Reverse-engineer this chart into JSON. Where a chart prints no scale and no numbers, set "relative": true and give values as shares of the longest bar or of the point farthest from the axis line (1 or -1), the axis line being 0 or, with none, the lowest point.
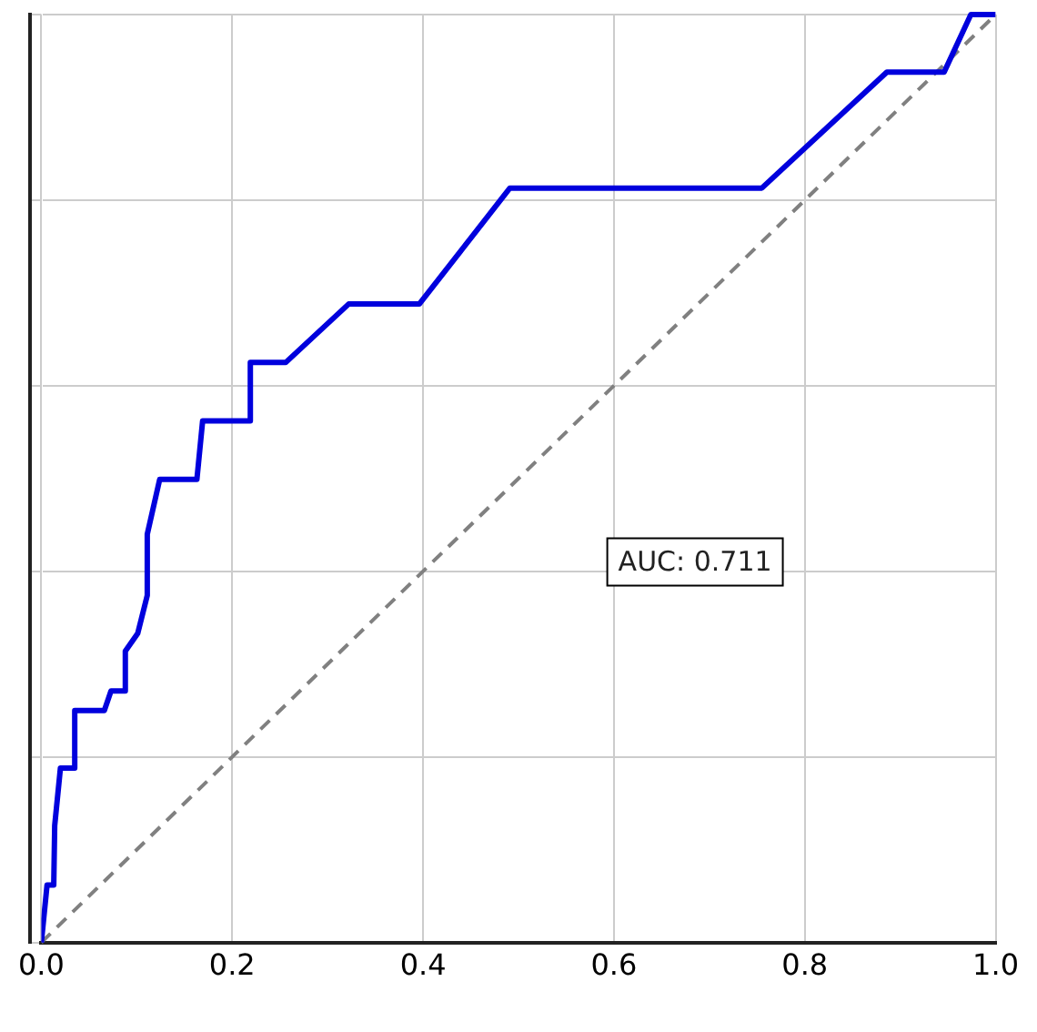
{
  "chart_data": {
    "type": "line",
    "relative": true,
    "xlim": [
      0,
      1
    ],
    "xticks": [
      {
        "value": 0,
        "label": "0.0"
      },
      {
        "value": 0.2,
        "label": "0.2"
      },
      {
        "value": 0.4,
        "label": "0.4"
      },
      {
        "value": 0.6,
        "label": "0.6"
      },
      {
        "value": 0.8,
        "label": "0.8"
      },
      {
        "value": 1,
        "label": "1.0"
      }
    ],
    "grid": true,
    "legend": false,
    "marker": "none",
    "annotations": [
      "AUC: 0.711"
    ],
    "series": [
      {
        "color": "#0000dd",
        "line_style": "solid",
        "x": [
          0,
          0.006,
          0.013,
          0.014,
          0.02,
          0.035,
          0.035,
          0.066,
          0.073,
          0.088,
          0.088,
          0.101,
          0.111,
          0.111,
          0.124,
          0.163,
          0.169,
          0.218,
          0.219,
          0.256,
          0.322,
          0.396,
          0.491,
          0.755,
          0.886,
          0.946,
          0.974,
          1.0
        ],
        "values": [
          0,
          0.062,
          0.062,
          0.126,
          0.188,
          0.188,
          0.25,
          0.25,
          0.271,
          0.271,
          0.314,
          0.333,
          0.374,
          0.44,
          0.499,
          0.499,
          0.562,
          0.562,
          0.625,
          0.625,
          0.688,
          0.688,
          0.813,
          0.813,
          0.938,
          0.938,
          1.0,
          1.0
        ]
      },
      {
        "color": "#808080",
        "line_style": "dashed",
        "x": [
          0,
          1
        ],
        "values": [
          0,
          1
        ]
      }
    ]
  }
}
